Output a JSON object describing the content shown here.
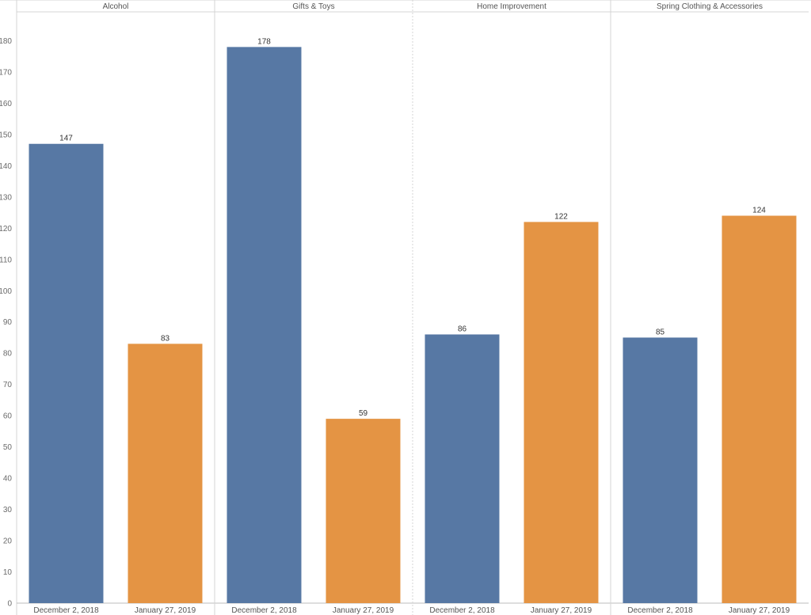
{
  "chart_data": {
    "type": "bar",
    "panels": [
      {
        "title": "Alcohol",
        "categories": [
          "December 2, 2018",
          "January 27, 2019"
        ],
        "values": [
          147,
          83
        ]
      },
      {
        "title": "Gifts & Toys",
        "categories": [
          "December 2, 2018",
          "January 27, 2019"
        ],
        "values": [
          178,
          59
        ]
      },
      {
        "title": "Home Improvement",
        "categories": [
          "December 2, 2018",
          "January 27, 2019"
        ],
        "values": [
          86,
          122
        ]
      },
      {
        "title": "Spring Clothing & Accessories",
        "categories": [
          "December 2, 2018",
          "January 27, 2019"
        ],
        "values": [
          85,
          124
        ]
      }
    ],
    "colors": [
      "#5778a4",
      "#e49444"
    ],
    "yticks": [
      0,
      10,
      20,
      30,
      40,
      50,
      60,
      70,
      80,
      90,
      100,
      110,
      120,
      130,
      140,
      150,
      160,
      170,
      180
    ],
    "ylim": [
      0,
      190
    ],
    "grid": false,
    "legend": "none"
  }
}
